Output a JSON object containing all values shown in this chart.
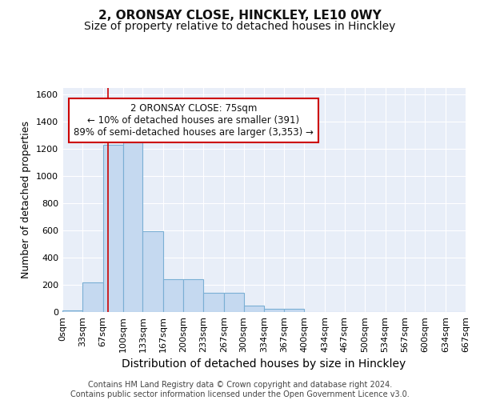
{
  "title_line1": "2, ORONSAY CLOSE, HINCKLEY, LE10 0WY",
  "title_line2": "Size of property relative to detached houses in Hinckley",
  "xlabel": "Distribution of detached houses by size in Hinckley",
  "ylabel": "Number of detached properties",
  "footer_line1": "Contains HM Land Registry data © Crown copyright and database right 2024.",
  "footer_line2": "Contains public sector information licensed under the Open Government Licence v3.0.",
  "bin_edges": [
    0,
    33,
    67,
    100,
    133,
    167,
    200,
    233,
    267,
    300,
    334,
    367,
    400,
    434,
    467,
    500,
    534,
    567,
    600,
    634,
    667
  ],
  "bin_labels": [
    "0sqm",
    "33sqm",
    "67sqm",
    "100sqm",
    "133sqm",
    "167sqm",
    "200sqm",
    "233sqm",
    "267sqm",
    "300sqm",
    "334sqm",
    "367sqm",
    "400sqm",
    "434sqm",
    "467sqm",
    "500sqm",
    "534sqm",
    "567sqm",
    "600sqm",
    "634sqm",
    "667sqm"
  ],
  "bar_heights": [
    10,
    220,
    1230,
    1290,
    595,
    240,
    240,
    140,
    140,
    50,
    25,
    22,
    0,
    0,
    0,
    0,
    0,
    0,
    0,
    0
  ],
  "bar_color": "#c5d9f0",
  "bar_edge_color": "#7aafd4",
  "red_line_x": 75,
  "annotation_text": "2 ORONSAY CLOSE: 75sqm\n← 10% of detached houses are smaller (391)\n89% of semi-detached houses are larger (3,353) →",
  "annotation_box_facecolor": "#ffffff",
  "annotation_box_edgecolor": "#cc0000",
  "ylim": [
    0,
    1650
  ],
  "yticks": [
    0,
    200,
    400,
    600,
    800,
    1000,
    1200,
    1400,
    1600
  ],
  "bg_color": "#e8eef8",
  "grid_color": "#ffffff",
  "title1_fontsize": 11,
  "title2_fontsize": 10,
  "ylabel_fontsize": 9,
  "xlabel_fontsize": 10,
  "tick_fontsize": 8,
  "footer_fontsize": 7,
  "annot_fontsize": 8.5
}
